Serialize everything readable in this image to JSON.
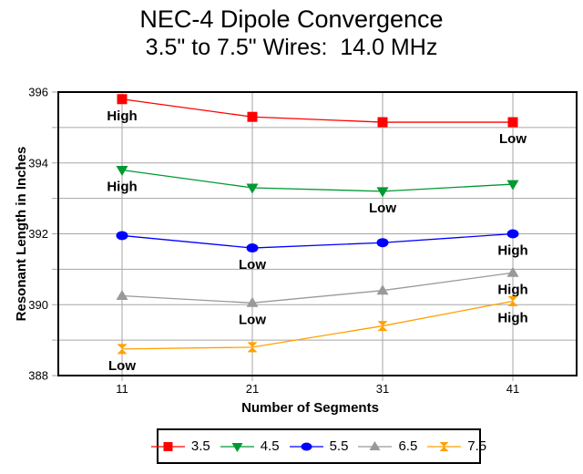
{
  "title": "NEC-4 Dipole Convergence",
  "subtitle": "3.5\" to 7.5\" Wires:  14.0 MHz",
  "chart_data": {
    "type": "line",
    "title": "NEC-4 Dipole Convergence",
    "subtitle": "3.5\" to 7.5\" Wires:  14.0 MHz",
    "xlabel": "Number of Segments",
    "ylabel": "Resonant Length in Inches",
    "categories": [
      11,
      21,
      31,
      41
    ],
    "ylim": [
      388,
      396
    ],
    "ytick_labels": [
      388,
      390,
      392,
      394,
      396
    ],
    "minor_gridlines": [
      389,
      391,
      393,
      395
    ],
    "grid": true,
    "grid_color": "#A6A6A6",
    "axis_color": "#000000",
    "annotation_color": "#000000",
    "legend_position": "bottom",
    "series": [
      {
        "name": "3.5",
        "color": "#FF0000",
        "marker": "square",
        "values": [
          395.8,
          395.3,
          395.15,
          395.15
        ],
        "annotations": [
          {
            "index": 0,
            "text": "High"
          },
          {
            "index": 3,
            "text": "Low"
          }
        ]
      },
      {
        "name": "4.5",
        "color": "#009933",
        "marker": "triangle-down",
        "values": [
          393.8,
          393.3,
          393.2,
          393.4
        ],
        "annotations": [
          {
            "index": 0,
            "text": "High"
          },
          {
            "index": 2,
            "text": "Low"
          }
        ]
      },
      {
        "name": "5.5",
        "color": "#0000FF",
        "marker": "ellipse",
        "values": [
          391.95,
          391.6,
          391.75,
          392.0
        ],
        "annotations": [
          {
            "index": 1,
            "text": "Low"
          },
          {
            "index": 3,
            "text": "High"
          }
        ]
      },
      {
        "name": "6.5",
        "color": "#999999",
        "marker": "triangle-up",
        "values": [
          390.25,
          390.05,
          390.4,
          390.9
        ],
        "annotations": [
          {
            "index": 1,
            "text": "Low"
          },
          {
            "index": 3,
            "text": "High"
          }
        ]
      },
      {
        "name": "7.5",
        "color": "#FFA000",
        "marker": "hourglass",
        "values": [
          388.75,
          388.8,
          389.4,
          390.1
        ],
        "annotations": [
          {
            "index": 0,
            "text": "Low"
          },
          {
            "index": 3,
            "text": "High"
          }
        ]
      }
    ]
  }
}
